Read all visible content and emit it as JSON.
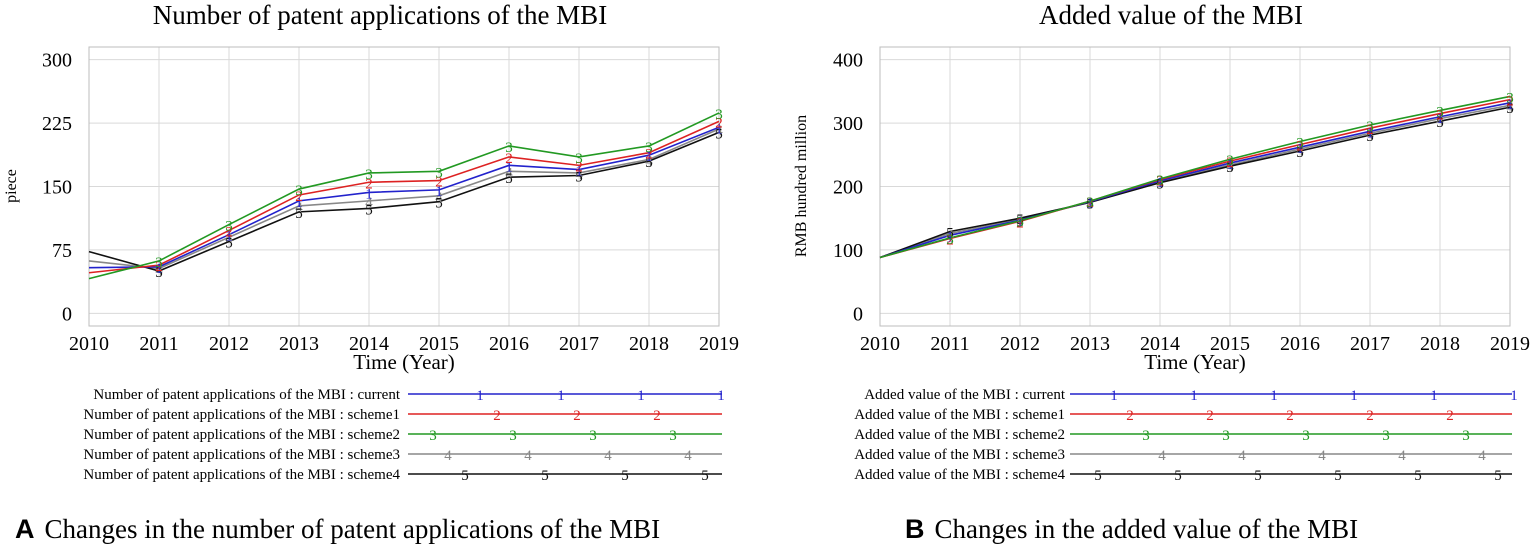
{
  "chart_data": [
    {
      "type": "line",
      "title": "Number of patent applications of the MBI",
      "xlabel": "Time (Year)",
      "ylabel": "piece",
      "x": [
        2010,
        2011,
        2012,
        2013,
        2014,
        2015,
        2016,
        2017,
        2018,
        2019
      ],
      "x_ticks": [
        "2010",
        "2011",
        "2012",
        "2013",
        "2014",
        "2015",
        "2016",
        "2017",
        "2018",
        "2019"
      ],
      "xlim": [
        2010,
        2019
      ],
      "ylim": [
        -15,
        315
      ],
      "y_ticks": [
        "0",
        "75",
        "150",
        "225",
        "300"
      ],
      "grid": true,
      "legend_position": "below",
      "caption_letter": "A",
      "caption": "Changes in the number of patent applications of the MBI",
      "series": [
        {
          "name": "Number of patent applications of the MBI : current",
          "marker": "1",
          "color": "#2222cc",
          "values": [
            54,
            55,
            93,
            133,
            143,
            146,
            175,
            170,
            187,
            220
          ]
        },
        {
          "name": "Number of patent applications of the MBI : scheme1",
          "marker": "2",
          "color": "#dd2222",
          "values": [
            48,
            57,
            98,
            140,
            155,
            157,
            185,
            175,
            190,
            227
          ]
        },
        {
          "name": "Number of patent applications of the MBI : scheme2",
          "marker": "3",
          "color": "#229922",
          "values": [
            41,
            62,
            105,
            147,
            166,
            168,
            198,
            185,
            198,
            237
          ]
        },
        {
          "name": "Number of patent applications of the MBI : scheme3",
          "marker": "4",
          "color": "#888888",
          "values": [
            62,
            53,
            90,
            127,
            133,
            139,
            168,
            166,
            182,
            218
          ]
        },
        {
          "name": "Number of patent applications of the MBI : scheme4",
          "marker": "5",
          "color": "#111111",
          "values": [
            73,
            50,
            85,
            120,
            124,
            132,
            161,
            163,
            180,
            214
          ]
        }
      ]
    },
    {
      "type": "line",
      "title": "Added value of the MBI",
      "xlabel": "Time (Year)",
      "ylabel": "RMB hundred million",
      "x": [
        2010,
        2011,
        2012,
        2013,
        2014,
        2015,
        2016,
        2017,
        2018,
        2019
      ],
      "x_ticks": [
        "2010",
        "2011",
        "2012",
        "2013",
        "2014",
        "2015",
        "2016",
        "2017",
        "2018",
        "2019"
      ],
      "xlim": [
        2010,
        2019
      ],
      "ylim": [
        -20,
        420
      ],
      "y_ticks": [
        "0",
        "100",
        "200",
        "300",
        "400"
      ],
      "grid": true,
      "legend_position": "below",
      "caption_letter": "B",
      "caption": "Changes in the added value of the MBI",
      "series": [
        {
          "name": "Added value of the MBI : current",
          "marker": "1",
          "color": "#2222cc",
          "values": [
            88,
            123,
            147,
            176,
            209,
            237,
            262,
            287,
            310,
            332
          ]
        },
        {
          "name": "Added value of the MBI : scheme1",
          "marker": "2",
          "color": "#dd2222",
          "values": [
            88,
            118,
            145,
            177,
            211,
            240,
            266,
            292,
            315,
            337
          ]
        },
        {
          "name": "Added value of the MBI : scheme2",
          "marker": "3",
          "color": "#229922",
          "values": [
            88,
            119,
            146,
            177,
            212,
            243,
            271,
            297,
            320,
            342
          ]
        },
        {
          "name": "Added value of the MBI : scheme3",
          "marker": "4",
          "color": "#888888",
          "values": [
            88,
            126,
            148,
            175,
            208,
            234,
            259,
            284,
            307,
            328
          ]
        },
        {
          "name": "Added value of the MBI : scheme4",
          "marker": "5",
          "color": "#111111",
          "values": [
            88,
            129,
            150,
            175,
            206,
            232,
            256,
            281,
            303,
            325
          ]
        }
      ]
    }
  ]
}
